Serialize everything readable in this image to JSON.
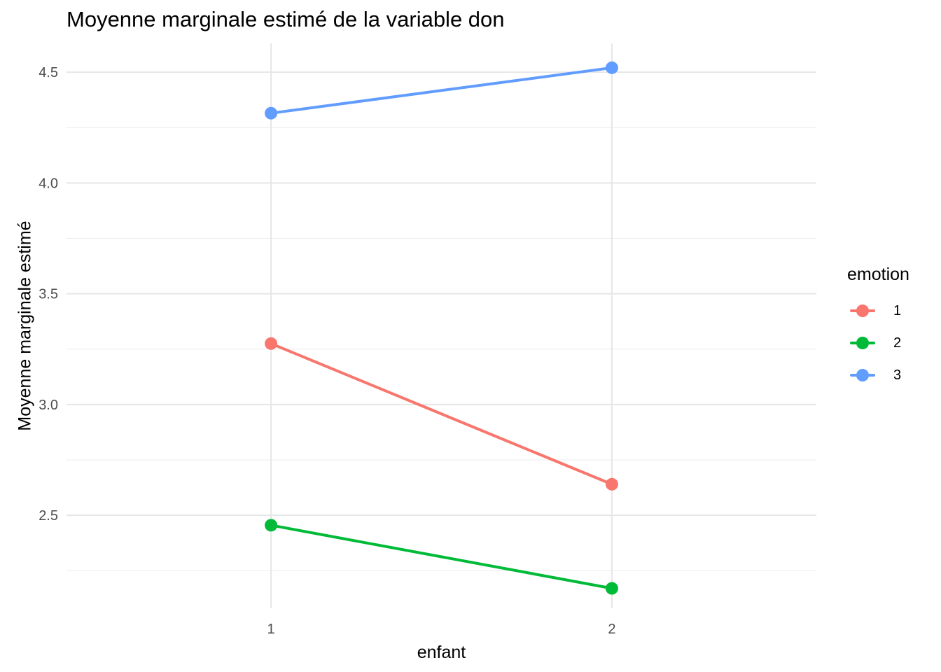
{
  "chart_data": {
    "type": "line",
    "title": "Moyenne marginale estimé de la variable don",
    "xlabel": "enfant",
    "ylabel": "Moyenne marginale estimé",
    "categories": [
      "1",
      "2"
    ],
    "xlim": [
      0.4,
      2.6
    ],
    "ylim": [
      2.08,
      4.63
    ],
    "yticks": [
      2.5,
      3.0,
      3.5,
      4.0,
      4.5
    ],
    "ytick_labels": [
      "2.5",
      "3.0",
      "3.5",
      "4.0",
      "4.5"
    ],
    "grid": true,
    "legend": {
      "title": "emotion",
      "position": "right"
    },
    "series": [
      {
        "name": "1",
        "color": "#F8766D",
        "values": [
          3.275,
          2.64
        ]
      },
      {
        "name": "2",
        "color": "#00BA38",
        "values": [
          2.455,
          2.17
        ]
      },
      {
        "name": "3",
        "color": "#619CFF",
        "values": [
          4.315,
          4.52
        ]
      }
    ]
  }
}
